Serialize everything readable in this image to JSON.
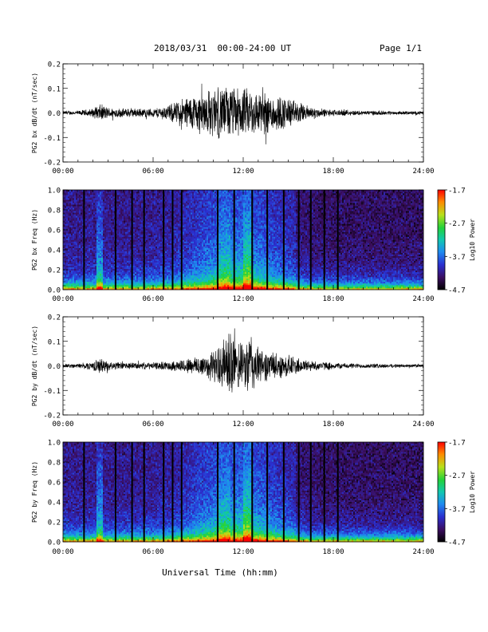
{
  "header": {
    "title": "2018/03/31  00:00-24:00 UT",
    "page": "Page 1/1"
  },
  "xlabel": "Universal Time (hh:mm)",
  "chart_data": [
    {
      "type": "line",
      "ylabel": "PG2 bx dB/dt (nT/sec)",
      "xlim": [
        0,
        24
      ],
      "ylim": [
        -0.2,
        0.2
      ],
      "x_ticks": [
        "00:00",
        "06:00",
        "12:00",
        "18:00",
        "24:00"
      ],
      "y_ticks": [
        "-0.2",
        "-0.1",
        "0.0",
        "0.1",
        "0.2"
      ],
      "envelope": {
        "hours": [
          0,
          1,
          2,
          2.5,
          3,
          4,
          5,
          6,
          7,
          7.5,
          8,
          9,
          10,
          10.5,
          11,
          12,
          12.5,
          13,
          14,
          15,
          16,
          16.5,
          17,
          18,
          19,
          20,
          21,
          22,
          23,
          24
        ],
        "amplitude": [
          0.008,
          0.01,
          0.02,
          0.04,
          0.025,
          0.02,
          0.02,
          0.02,
          0.035,
          0.05,
          0.07,
          0.09,
          0.11,
          0.12,
          0.12,
          0.11,
          0.11,
          0.1,
          0.09,
          0.07,
          0.04,
          0.03,
          0.02,
          0.015,
          0.012,
          0.01,
          0.01,
          0.008,
          0.008,
          0.008
        ]
      }
    },
    {
      "type": "heatmap",
      "ylabel": "PG2 bx Freq (Hz)",
      "xlim": [
        0,
        24
      ],
      "ylim": [
        0.0,
        1.0
      ],
      "x_ticks": [
        "00:00",
        "06:00",
        "12:00",
        "18:00",
        "24:00"
      ],
      "y_ticks": [
        "0.0",
        "0.2",
        "0.4",
        "0.6",
        "0.8",
        "1.0"
      ],
      "colorbar": {
        "label": "Log10 Power",
        "min": -4.7,
        "max": -1.7,
        "ticks": [
          "-1.7",
          "-2.7",
          "-3.7",
          "-4.7"
        ]
      },
      "gap_lines_hours": [
        1.4,
        3.5,
        4.6,
        5.4,
        6.7,
        7.3,
        7.9,
        10.3,
        11.4,
        12.6,
        13.6,
        14.7,
        15.7,
        16.5,
        17.4,
        18.3
      ]
    },
    {
      "type": "line",
      "ylabel": "PG2 by dB/dt (nT/sec)",
      "xlim": [
        0,
        24
      ],
      "ylim": [
        -0.2,
        0.2
      ],
      "x_ticks": [
        "00:00",
        "06:00",
        "12:00",
        "18:00",
        "24:00"
      ],
      "y_ticks": [
        "-0.2",
        "-0.1",
        "0.0",
        "0.1",
        "0.2"
      ],
      "envelope": {
        "hours": [
          0,
          1,
          2,
          2.5,
          3,
          4,
          5,
          6,
          7,
          8,
          9,
          10,
          10.5,
          11,
          11.5,
          12,
          12.5,
          13,
          14,
          15,
          16,
          17,
          18,
          19,
          20,
          21,
          22,
          23,
          24
        ],
        "amplitude": [
          0.008,
          0.01,
          0.02,
          0.035,
          0.02,
          0.015,
          0.015,
          0.015,
          0.02,
          0.03,
          0.045,
          0.07,
          0.09,
          0.17,
          0.12,
          0.09,
          0.16,
          0.08,
          0.06,
          0.05,
          0.03,
          0.02,
          0.015,
          0.012,
          0.01,
          0.01,
          0.008,
          0.008,
          0.008
        ]
      }
    },
    {
      "type": "heatmap",
      "ylabel": "PG2 by Freq (Hz)",
      "xlim": [
        0,
        24
      ],
      "ylim": [
        0.0,
        1.0
      ],
      "x_ticks": [
        "00:00",
        "06:00",
        "12:00",
        "18:00",
        "24:00"
      ],
      "y_ticks": [
        "0.0",
        "0.2",
        "0.4",
        "0.6",
        "0.8",
        "1.0"
      ],
      "colorbar": {
        "label": "Log10 Power",
        "min": -4.7,
        "max": -1.7,
        "ticks": [
          "-1.7",
          "-2.7",
          "-3.7",
          "-4.7"
        ]
      },
      "gap_lines_hours": [
        1.4,
        3.5,
        4.6,
        5.4,
        6.7,
        7.3,
        7.9,
        10.3,
        11.4,
        12.6,
        13.6,
        14.7,
        15.7,
        16.5,
        17.4,
        18.3
      ]
    }
  ]
}
